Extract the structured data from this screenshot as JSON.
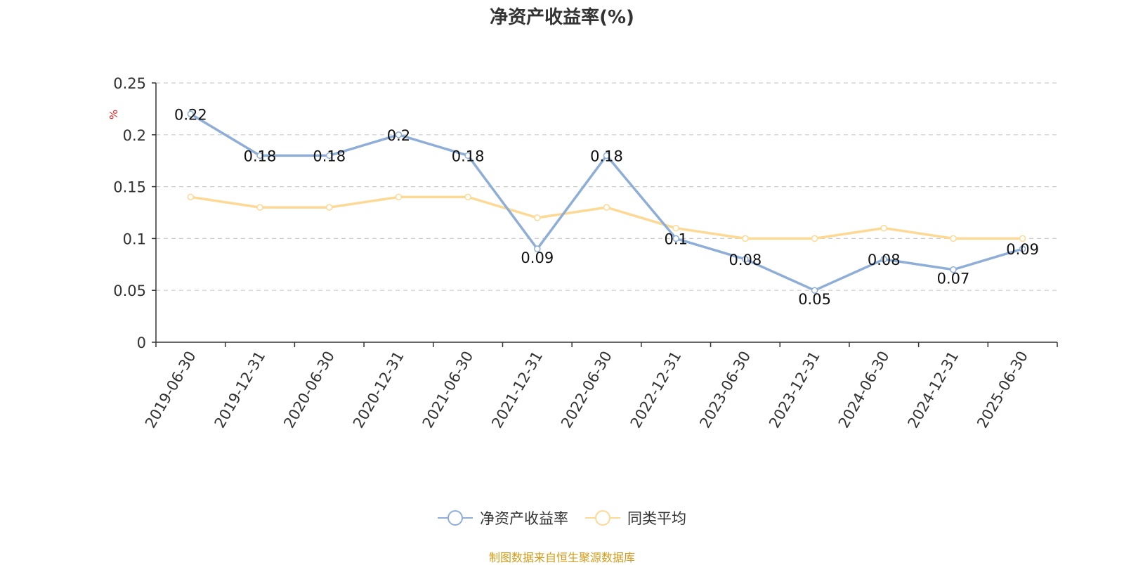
{
  "chart_data": {
    "type": "line",
    "title": "净资产收益率(%)",
    "ylabel": "%",
    "xlabel": "",
    "categories": [
      "2019-06-30",
      "2019-12-31",
      "2020-06-30",
      "2020-12-31",
      "2021-06-30",
      "2021-12-31",
      "2022-06-30",
      "2022-12-31",
      "2023-06-30",
      "2023-12-31",
      "2024-06-30",
      "2024-12-31",
      "2025-06-30"
    ],
    "ylim": [
      0,
      0.25
    ],
    "yticks": [
      "0",
      "0.05",
      "0.1",
      "0.15",
      "0.2",
      "0.25"
    ],
    "grid": true,
    "legend_position": "bottom-center",
    "series": [
      {
        "name": "净资产收益率",
        "color": "#8eaed8",
        "values": [
          0.22,
          0.18,
          0.18,
          0.2,
          0.18,
          0.09,
          0.18,
          0.1,
          0.08,
          0.05,
          0.08,
          0.07,
          0.09
        ],
        "labels": [
          "0.22",
          "0.18",
          "0.18",
          "0.2",
          "0.18",
          "0.09",
          "0.18",
          "0.1",
          "0.08",
          "0.05",
          "0.08",
          "0.07",
          "0.09"
        ]
      },
      {
        "name": "同类平均",
        "color": "#fcd995",
        "values": [
          0.14,
          0.13,
          0.13,
          0.14,
          0.14,
          0.12,
          0.13,
          0.11,
          0.1,
          0.1,
          0.11,
          0.1,
          0.1
        ]
      }
    ]
  },
  "legend": {
    "items": [
      {
        "label": "净资产收益率",
        "color": "#8eaed8"
      },
      {
        "label": "同类平均",
        "color": "#fcd995"
      }
    ]
  },
  "source_note": "制图数据来自恒生聚源数据库"
}
